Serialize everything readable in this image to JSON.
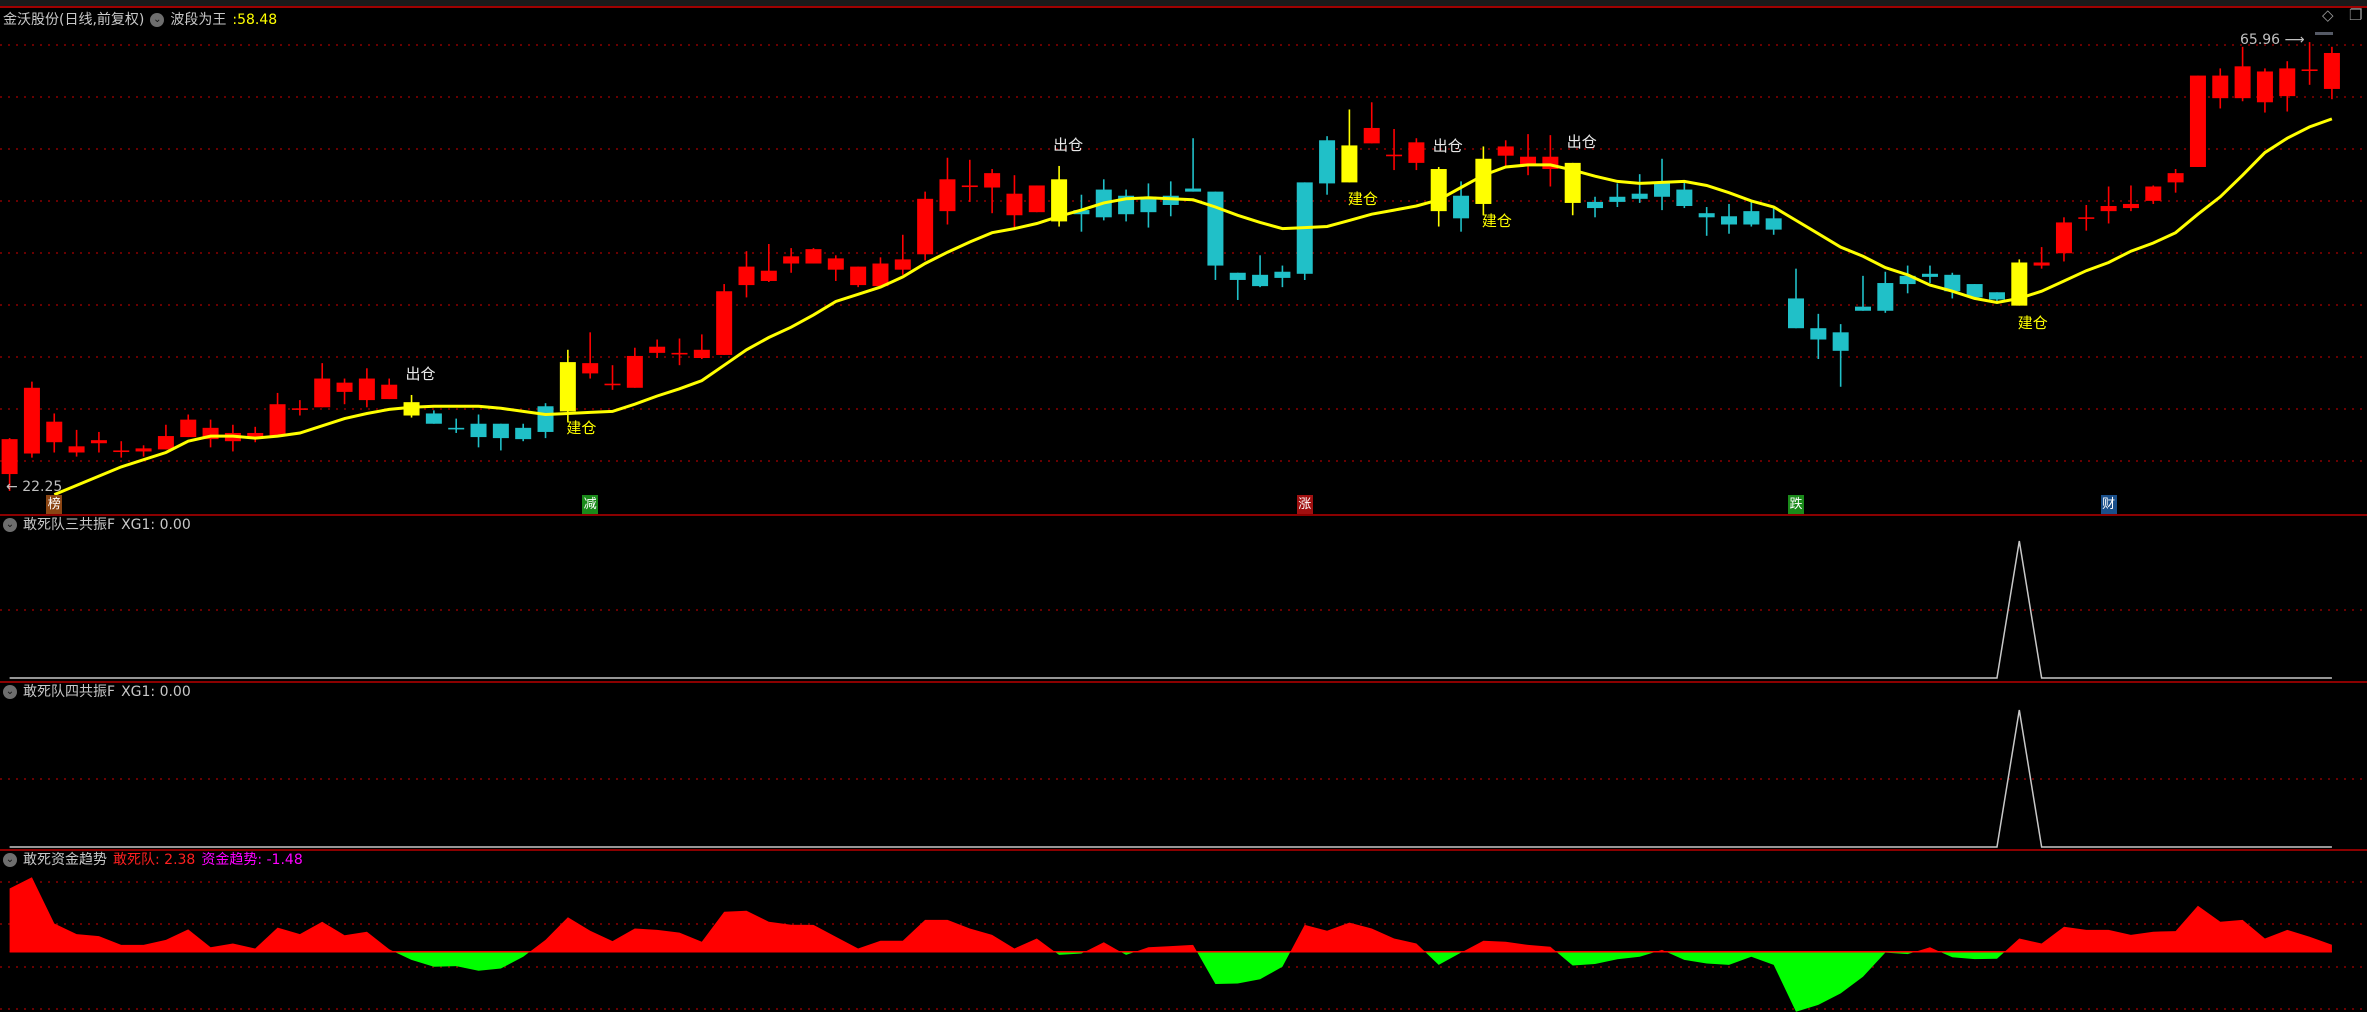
{
  "main": {
    "title": "金沃股份(日线,前复权)",
    "indicator_name": "波段为王",
    "indicator_value": ":58.48",
    "high_label": "65.96",
    "low_label": "22.25",
    "signal_out_text": "出仓",
    "signal_in_text": "建仓",
    "markers": [
      {
        "text": "榜",
        "index": 3,
        "color": "#8b4513"
      },
      {
        "text": "减",
        "index": 27,
        "color": "#1a8a1a"
      },
      {
        "text": "涨",
        "index": 59,
        "color": "#a01010"
      },
      {
        "text": "跌",
        "index": 81,
        "color": "#1a8a1a"
      },
      {
        "text": "财",
        "index": 95,
        "color": "#1a4f8a"
      }
    ]
  },
  "panel2": {
    "title": "敢死队三共振F",
    "label": "XG1: 0.00"
  },
  "panel3": {
    "title": "敢死队四共振F",
    "label": "XG1: 0.00"
  },
  "panel4": {
    "title": "敢死资金趋势",
    "series1_label": "敢死队: 2.38",
    "series2_label": "资金趋势: -1.48"
  },
  "icons": {
    "panel_menu": "chevron-down-circle-icon",
    "top_right_1": "diamond-icon",
    "top_right_2": "window-restore-icon"
  },
  "colors": {
    "up": "#ff0000",
    "down": "#20c0c8",
    "signal": "#ffff00",
    "ma": "#ffff00",
    "positive_area": "#ff0000",
    "negative_area": "#00ff00",
    "grid": "#8b0000",
    "spike_line": "#c8c8c8"
  },
  "chart_data": {
    "type": "candlestick",
    "price_range": [
      22.25,
      65.96
    ],
    "ohlc": [
      [
        23.9,
        27.4,
        22.25,
        27.3
      ],
      [
        25.9,
        32.9,
        25.5,
        32.3
      ],
      [
        27.0,
        29.8,
        26.0,
        29.0
      ],
      [
        26.0,
        28.2,
        25.6,
        26.6
      ],
      [
        26.9,
        28.0,
        26.0,
        27.2
      ],
      [
        26.2,
        27.1,
        25.5,
        26.2
      ],
      [
        26.1,
        26.7,
        25.6,
        26.4
      ],
      [
        26.3,
        28.7,
        26.3,
        27.6
      ],
      [
        27.5,
        29.7,
        27.5,
        29.2
      ],
      [
        27.3,
        29.2,
        26.5,
        28.4
      ],
      [
        27.1,
        28.7,
        26.1,
        27.9
      ],
      [
        27.5,
        28.5,
        27.0,
        27.9
      ],
      [
        27.6,
        31.8,
        27.6,
        30.7
      ],
      [
        30.3,
        31.1,
        29.6,
        30.3
      ],
      [
        30.4,
        34.7,
        30.4,
        33.2
      ],
      [
        31.9,
        33.2,
        30.7,
        32.8
      ],
      [
        31.1,
        34.2,
        30.4,
        33.2
      ],
      [
        31.2,
        33.2,
        31.2,
        32.6
      ],
      [
        30.9,
        31.6,
        29.4,
        29.6
      ],
      [
        29.8,
        30.1,
        28.8,
        28.8
      ],
      [
        28.4,
        29.3,
        27.9,
        28.3
      ],
      [
        28.8,
        29.7,
        26.5,
        27.5
      ],
      [
        28.8,
        28.8,
        26.2,
        27.4
      ],
      [
        28.4,
        28.8,
        27.1,
        27.3
      ],
      [
        30.5,
        30.8,
        27.4,
        28.0
      ],
      [
        30.0,
        36.0,
        29.0,
        34.8
      ],
      [
        33.7,
        37.7,
        33.2,
        34.7
      ],
      [
        32.7,
        34.5,
        32.1,
        32.7
      ],
      [
        32.3,
        36.2,
        32.3,
        35.4
      ],
      [
        35.7,
        37.0,
        35.2,
        36.3
      ],
      [
        35.7,
        37.1,
        34.5,
        35.7
      ],
      [
        35.2,
        37.5,
        35.1,
        36.0
      ],
      [
        35.5,
        42.4,
        35.5,
        41.7
      ],
      [
        42.3,
        45.6,
        41.1,
        44.1
      ],
      [
        42.7,
        46.3,
        42.6,
        43.7
      ],
      [
        44.4,
        45.9,
        43.5,
        45.1
      ],
      [
        44.4,
        45.9,
        44.4,
        45.8
      ],
      [
        43.8,
        45.2,
        42.7,
        44.9
      ],
      [
        42.3,
        44.1,
        42.1,
        44.1
      ],
      [
        42.2,
        45.0,
        42.2,
        44.4
      ],
      [
        43.8,
        47.2,
        43.3,
        44.8
      ],
      [
        45.3,
        51.4,
        44.7,
        50.7
      ],
      [
        49.5,
        54.7,
        48.2,
        52.6
      ],
      [
        52.0,
        54.5,
        50.4,
        52.0
      ],
      [
        51.8,
        53.6,
        49.3,
        53.2
      ],
      [
        49.1,
        53.0,
        47.9,
        51.2
      ],
      [
        49.4,
        52.0,
        49.4,
        52.0
      ],
      [
        52.6,
        53.9,
        48.0,
        48.5
      ],
      [
        49.6,
        51.1,
        47.5,
        49.2
      ],
      [
        51.6,
        52.6,
        48.6,
        48.9
      ],
      [
        51.0,
        51.6,
        48.5,
        49.2
      ],
      [
        50.9,
        52.2,
        47.9,
        49.4
      ],
      [
        51.0,
        52.4,
        49.0,
        50.1
      ],
      [
        51.7,
        56.6,
        51.4,
        51.4
      ],
      [
        51.4,
        51.4,
        42.8,
        44.2
      ],
      [
        43.5,
        43.5,
        40.85,
        42.8
      ],
      [
        43.3,
        45.2,
        42.1,
        42.2
      ],
      [
        43.6,
        44.2,
        42.1,
        43.0
      ],
      [
        52.3,
        52.3,
        42.8,
        43.4
      ],
      [
        56.4,
        56.8,
        51.1,
        52.2
      ],
      [
        52.3,
        59.4,
        52.3,
        55.9
      ],
      [
        56.1,
        60.1,
        56.1,
        57.6
      ],
      [
        55.0,
        57.5,
        53.5,
        55.0
      ],
      [
        54.2,
        56.6,
        53.5,
        56.2
      ],
      [
        53.6,
        53.8,
        48.0,
        49.5
      ],
      [
        51.0,
        52.4,
        47.5,
        48.8
      ],
      [
        50.2,
        55.8,
        49.1,
        54.6
      ],
      [
        54.9,
        56.4,
        53.8,
        55.8
      ],
      [
        54.0,
        57.0,
        53.0,
        54.8
      ],
      [
        53.6,
        56.9,
        51.9,
        54.8
      ],
      [
        54.2,
        54.2,
        49.1,
        50.3
      ],
      [
        50.4,
        50.9,
        48.9,
        49.8
      ],
      [
        50.9,
        52.2,
        49.9,
        50.4
      ],
      [
        51.2,
        53.1,
        50.3,
        50.7
      ],
      [
        52.2,
        54.6,
        49.6,
        50.9
      ],
      [
        51.6,
        52.4,
        49.8,
        50.0
      ],
      [
        49.3,
        49.9,
        47.1,
        48.9
      ],
      [
        49.0,
        50.2,
        47.3,
        48.2
      ],
      [
        49.5,
        50.4,
        48.0,
        48.2
      ],
      [
        48.8,
        49.9,
        47.2,
        47.7
      ],
      [
        41.0,
        43.9,
        38.1,
        38.1
      ],
      [
        38.1,
        39.5,
        35.1,
        37.0
      ],
      [
        37.7,
        38.5,
        32.4,
        35.9
      ],
      [
        40.2,
        43.2,
        39.8,
        39.8
      ],
      [
        42.5,
        43.6,
        39.6,
        39.8
      ],
      [
        43.2,
        44.2,
        41.5,
        42.4
      ],
      [
        43.4,
        44.2,
        42.5,
        43.1
      ],
      [
        43.3,
        43.5,
        41.0,
        41.7
      ],
      [
        42.4,
        42.4,
        40.9,
        41.1
      ],
      [
        41.6,
        41.6,
        40.5,
        40.9
      ],
      [
        40.3,
        44.8,
        40.3,
        44.5
      ],
      [
        44.2,
        46.0,
        43.9,
        44.5
      ],
      [
        45.4,
        48.9,
        44.6,
        48.4
      ],
      [
        48.9,
        50.1,
        47.6,
        48.9
      ],
      [
        49.5,
        51.9,
        48.3,
        50.0
      ],
      [
        49.8,
        52.0,
        49.5,
        50.2
      ],
      [
        50.5,
        52.0,
        50.2,
        51.9
      ],
      [
        52.3,
        53.6,
        51.3,
        53.2
      ],
      [
        53.8,
        62.7,
        53.8,
        62.7
      ],
      [
        60.5,
        63.4,
        59.5,
        62.7
      ],
      [
        60.5,
        65.5,
        60.2,
        63.6
      ],
      [
        60.1,
        63.4,
        59.1,
        63.1
      ],
      [
        60.7,
        64.1,
        59.2,
        63.4
      ],
      [
        63.3,
        65.96,
        61.8,
        63.3
      ],
      [
        61.4,
        65.5,
        60.4,
        64.9
      ]
    ],
    "signal_candles": [
      19,
      26,
      48,
      61,
      65,
      67,
      71,
      91
    ],
    "signal_out": [
      19,
      48,
      65,
      71
    ],
    "signal_in": [
      26,
      61,
      67,
      91
    ],
    "ma_line": [
      null,
      null,
      21.9,
      22.8,
      23.7,
      24.6,
      25.3,
      26.0,
      27.1,
      27.6,
      27.6,
      27.4,
      27.6,
      27.9,
      28.6,
      29.3,
      29.8,
      30.2,
      30.4,
      30.5,
      30.5,
      30.5,
      30.3,
      30.0,
      29.7,
      29.8,
      29.9,
      30.0,
      30.7,
      31.5,
      32.2,
      33.0,
      34.5,
      36.0,
      37.2,
      38.2,
      39.4,
      40.7,
      41.4,
      42.1,
      43.1,
      44.4,
      45.5,
      46.5,
      47.4,
      47.8,
      48.3,
      49.0,
      49.6,
      50.3,
      50.7,
      50.8,
      50.7,
      50.6,
      49.9,
      49.1,
      48.4,
      47.8,
      47.9,
      48.0,
      48.6,
      49.2,
      49.6,
      50.0,
      50.6,
      51.8,
      53.0,
      53.8,
      54.0,
      54.0,
      53.5,
      52.9,
      52.4,
      52.2,
      52.3,
      52.4,
      52.0,
      51.3,
      50.5,
      49.9,
      48.6,
      47.3,
      46.0,
      45.1,
      44.0,
      43.3,
      42.3,
      41.7,
      41.0,
      40.6,
      41.0,
      41.7,
      42.7,
      43.7,
      44.5,
      45.6,
      46.4,
      47.4,
      49.2,
      50.9,
      53.0,
      55.2,
      56.6,
      57.7,
      58.48
    ],
    "xg1_panel2": {
      "spike_index": 91,
      "spike_value": 1,
      "base_value": 0
    },
    "xg1_panel3": {
      "spike_index": 91,
      "spike_value": 1,
      "base_value": 0
    },
    "fund_trend": [
      21.5,
      25.3,
      9.6,
      6.0,
      5.3,
      2.3,
      2.3,
      4.0,
      7.6,
      1.5,
      2.8,
      1.1,
      8.2,
      6.0,
      10.2,
      5.6,
      6.8,
      0.8,
      -2.8,
      -5.1,
      -4.9,
      -6.5,
      -5.7,
      -1.7,
      4.0,
      11.7,
      7.1,
      3.6,
      7.9,
      7.4,
      6.5,
      3.4,
      13.6,
      13.9,
      10.2,
      9.2,
      9.1,
      5.1,
      1.1,
      3.7,
      3.7,
      10.8,
      10.8,
      7.9,
      5.7,
      1.1,
      4.5,
      -1.1,
      -0.6,
      3.2,
      -1.1,
      1.5,
      1.9,
      2.3,
      -11.0,
      -10.8,
      -9.4,
      -5.1,
      9.1,
      7.1,
      9.9,
      7.9,
      4.5,
      2.8,
      -4.5,
      -0.3,
      3.7,
      3.4,
      2.3,
      1.7,
      -4.7,
      -4.2,
      -2.6,
      -1.7,
      0.6,
      -2.8,
      -4.0,
      -4.5,
      -1.7,
      -4.5,
      -20.4,
      -18.1,
      -14.2,
      -8.5,
      -0.3,
      -0.8,
      1.5,
      -1.9,
      -2.5,
      -2.4,
      4.5,
      2.8,
      8.5,
      7.4,
      7.4,
      5.7,
      6.8,
      7.0,
      15.6,
      10.2,
      10.8,
      4.5,
      7.4,
      5.1,
      2.38
    ]
  }
}
